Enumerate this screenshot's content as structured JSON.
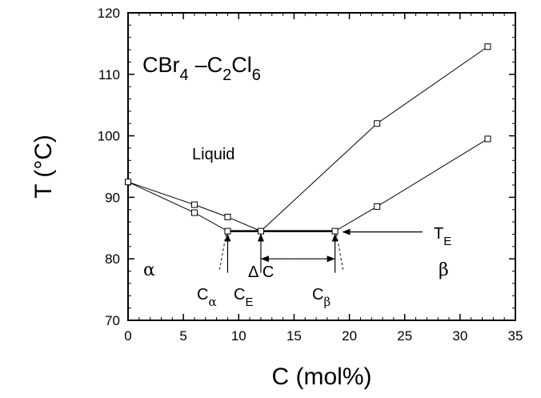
{
  "chart_data": {
    "type": "line",
    "title": "",
    "xlabel": "C (mol%)",
    "ylabel": "T (°C)",
    "xlim": [
      0,
      35
    ],
    "ylim": [
      70,
      120
    ],
    "xticks": [
      "0",
      "5",
      "10",
      "15",
      "20",
      "25",
      "30",
      "35"
    ],
    "yticks": [
      "70",
      "80",
      "90",
      "100",
      "110",
      "120"
    ],
    "grid": false,
    "series": [
      {
        "x": [
          0,
          6,
          9,
          12
        ],
        "y": [
          92.5,
          88.8,
          86.8,
          84.5
        ]
      },
      {
        "x": [
          0,
          6,
          9,
          12,
          18.7,
          22.5,
          32.5
        ],
        "y": [
          92.5,
          87.5,
          84.5,
          84.5,
          84.5,
          88.5,
          99.5
        ]
      },
      {
        "x": [
          12,
          22.5,
          32.5
        ],
        "y": [
          84.5,
          102,
          114.5
        ]
      }
    ],
    "eutectic_line": {
      "x": [
        9,
        18.7
      ],
      "y": [
        84.5,
        84.5
      ]
    },
    "annotations": {
      "system_label": {
        "cbr": "CBr",
        "cbr_sub": "4",
        "dash": "–C",
        "c_sub": "2",
        "cl": "Cl",
        "cl_sub": "6"
      },
      "liquid": "Liquid",
      "alpha": "α",
      "beta": "β",
      "delta_c": "Δ C",
      "c_alpha": {
        "main": "C",
        "sub": "α",
        "x": 9
      },
      "c_e": {
        "main": "C",
        "sub": "E",
        "x": 12
      },
      "c_beta": {
        "main": "C",
        "sub": "β",
        "x": 18.7
      },
      "t_e": {
        "main": "T",
        "sub": "E"
      }
    }
  }
}
